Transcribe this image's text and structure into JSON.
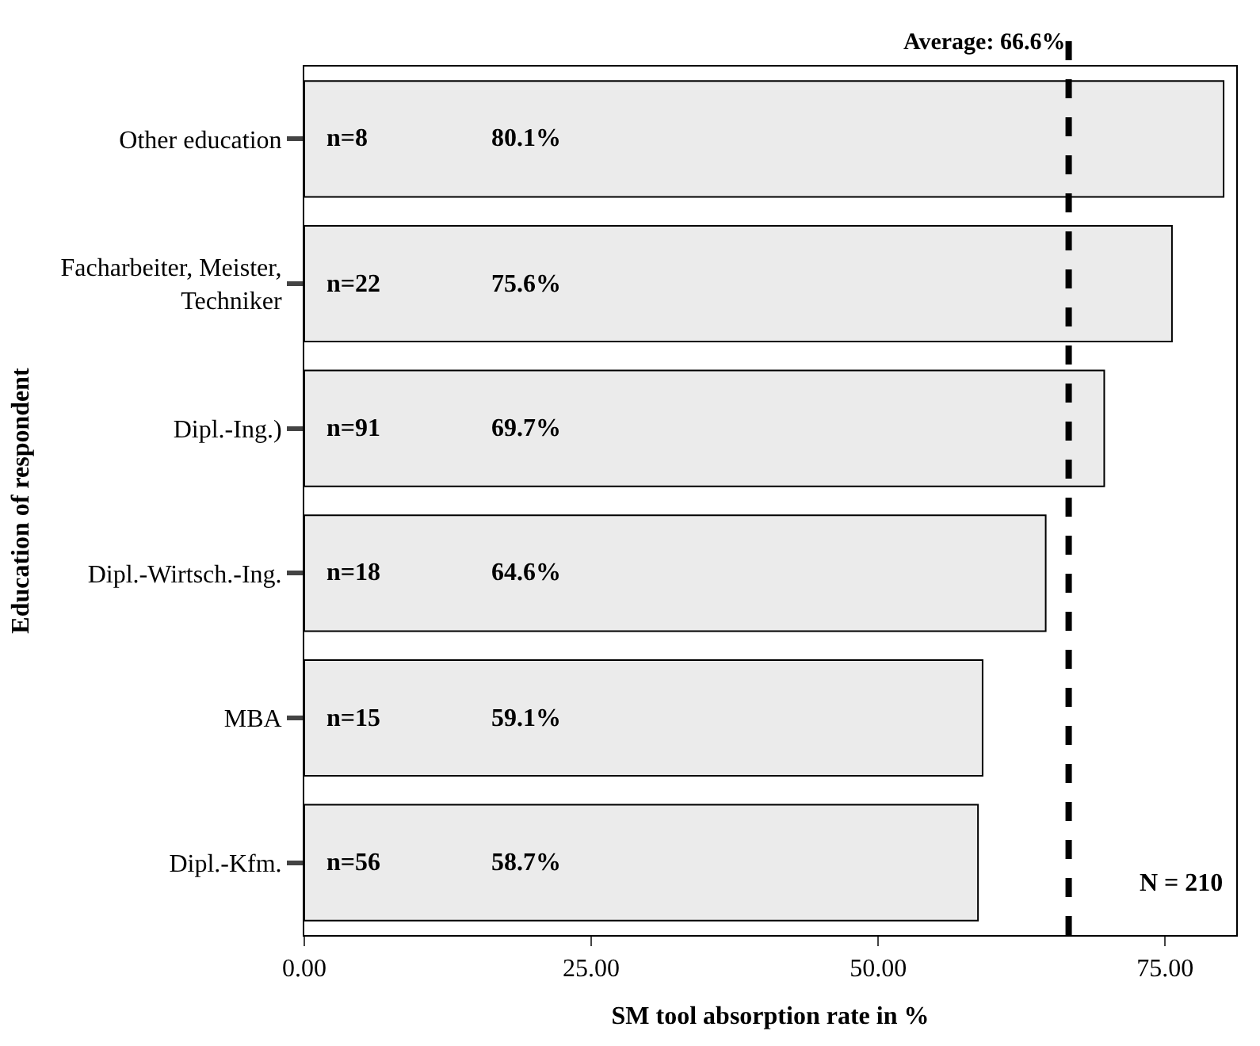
{
  "chart_data": {
    "type": "bar",
    "orientation": "horizontal",
    "categories": [
      "Other education",
      "Facharbeiter, Meister, Techniker",
      "Dipl.-Ing.)",
      "Dipl.-Wirtsch.-Ing.",
      "MBA",
      "Dipl.-Kfm."
    ],
    "values": [
      80.1,
      75.6,
      69.7,
      64.6,
      59.1,
      58.7
    ],
    "value_labels": [
      "80.1%",
      "75.6%",
      "69.7%",
      "64.6%",
      "59.1%",
      "58.7%"
    ],
    "color": "#ebebeb",
    "xlabel": "SM tool absorption rate in %",
    "ylabel": "Education of respondent",
    "xlim": [
      0,
      81.2
    ],
    "xticks": [
      {
        "value": 0,
        "label": "0.00"
      },
      {
        "value": 25,
        "label": "25.00"
      },
      {
        "value": 50,
        "label": "50.00"
      },
      {
        "value": 75,
        "label": "75.00"
      }
    ],
    "ref_lines": [
      {
        "axis": "x",
        "value": 66.6,
        "label": "Average: 66.6%",
        "line_style": "dashed",
        "color": "#000000"
      }
    ],
    "annotations": [
      {
        "text": "n=8",
        "y": "Other education"
      },
      {
        "text": "n=22",
        "y": "Facharbeiter, Meister, Techniker"
      },
      {
        "text": "n=91",
        "y": "Dipl.-Ing.)"
      },
      {
        "text": "n=18",
        "y": "Dipl.-Wirtsch.-Ing."
      },
      {
        "text": "n=15",
        "y": "MBA"
      },
      {
        "text": "n=56",
        "y": "Dipl.-Kfm."
      },
      "N = 210"
    ],
    "grid": false,
    "legend": false
  }
}
